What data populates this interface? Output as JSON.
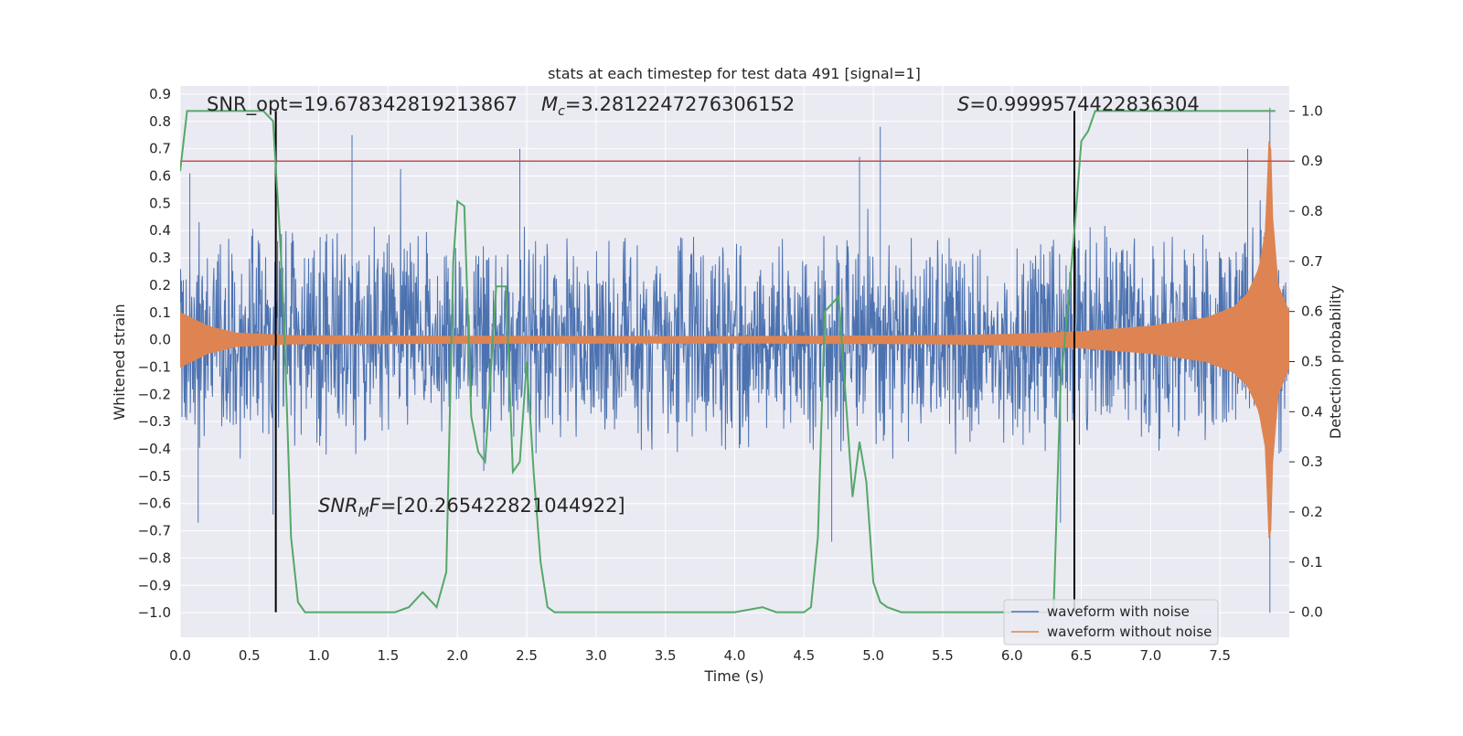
{
  "chart_data": {
    "type": "line",
    "title": "stats at each timestep for test data 491 [signal=1]",
    "xlabel": "Time (s)",
    "ylabel_left": "Whitened strain",
    "ylabel_right": "Detection probability",
    "xlim": [
      0.0,
      8.0
    ],
    "ylim_left": [
      -1.09,
      0.93
    ],
    "ylim_right": [
      -0.05,
      1.05
    ],
    "x_ticks": [
      "0.0",
      "0.5",
      "1.0",
      "1.5",
      "2.0",
      "2.5",
      "3.0",
      "3.5",
      "4.0",
      "4.5",
      "5.0",
      "5.5",
      "6.0",
      "6.5",
      "7.0",
      "7.5"
    ],
    "y_left_ticks": [
      "0.9",
      "0.8",
      "0.7",
      "0.6",
      "0.5",
      "0.4",
      "0.3",
      "0.2",
      "0.1",
      "0.0",
      "-0.1",
      "-0.2",
      "-0.3",
      "-0.4",
      "-0.5",
      "-0.6",
      "-0.7",
      "-0.8",
      "-0.9",
      "-1.0"
    ],
    "y_right_ticks": [
      "1.0",
      "0.9",
      "0.8",
      "0.7",
      "0.6",
      "0.5",
      "0.4",
      "0.3",
      "0.2",
      "0.1",
      "0.0"
    ],
    "grid": true,
    "legend_position": "lower-right",
    "colors": {
      "noisy": "#4c72b0",
      "clean": "#dd8452",
      "probability": "#55a868",
      "threshold": "#c44e52",
      "markers": "#000000",
      "plot_bg": "#eaeaf2",
      "grid": "#ffffff"
    },
    "series": [
      {
        "name": "waveform with noise",
        "axis": "left",
        "style": "dense noise",
        "typical_envelope": 0.3,
        "peaks": [
          [
            0.07,
            0.61
          ],
          [
            1.24,
            0.75
          ],
          [
            2.45,
            0.7
          ],
          [
            4.9,
            0.67
          ],
          [
            5.05,
            0.78
          ],
          [
            7.7,
            0.7
          ],
          [
            7.86,
            0.85
          ],
          [
            0.13,
            -0.67
          ],
          [
            0.67,
            -0.64
          ],
          [
            4.7,
            -0.74
          ],
          [
            6.35,
            -0.67
          ],
          [
            7.86,
            -1.0
          ]
        ]
      },
      {
        "name": "waveform without noise",
        "axis": "left",
        "style": "chirp envelope",
        "envelope": [
          [
            0.0,
            0.1
          ],
          [
            0.2,
            0.05
          ],
          [
            0.4,
            0.025
          ],
          [
            0.8,
            0.015
          ],
          [
            2.0,
            0.013
          ],
          [
            4.0,
            0.012
          ],
          [
            5.5,
            0.015
          ],
          [
            6.0,
            0.02
          ],
          [
            6.5,
            0.03
          ],
          [
            7.0,
            0.05
          ],
          [
            7.4,
            0.08
          ],
          [
            7.6,
            0.12
          ],
          [
            7.7,
            0.17
          ],
          [
            7.78,
            0.26
          ],
          [
            7.83,
            0.4
          ],
          [
            7.86,
            0.82
          ],
          [
            7.88,
            0.45
          ],
          [
            7.92,
            0.2
          ],
          [
            8.0,
            0.1
          ]
        ]
      },
      {
        "name": "",
        "axis": "right",
        "style": "line",
        "x": [
          0.0,
          0.05,
          0.1,
          0.3,
          0.5,
          0.6,
          0.67,
          0.72,
          0.75,
          0.8,
          0.85,
          0.9,
          1.0,
          1.2,
          1.4,
          1.55,
          1.65,
          1.75,
          1.85,
          1.92,
          1.97,
          2.0,
          2.05,
          2.1,
          2.15,
          2.2,
          2.28,
          2.35,
          2.4,
          2.45,
          2.5,
          2.55,
          2.6,
          2.65,
          2.7,
          2.8,
          3.0,
          3.5,
          4.0,
          4.2,
          4.3,
          4.4,
          4.5,
          4.55,
          4.6,
          4.65,
          4.75,
          4.85,
          4.9,
          4.95,
          5.0,
          5.05,
          5.1,
          5.2,
          5.3,
          5.6,
          6.0,
          6.2,
          6.3,
          6.35,
          6.4,
          6.45,
          6.5,
          6.55,
          6.6,
          6.7,
          7.0,
          7.5,
          7.9
        ],
        "y": [
          0.88,
          1.0,
          1.0,
          1.0,
          1.0,
          1.0,
          0.98,
          0.75,
          0.58,
          0.15,
          0.02,
          0.0,
          0.0,
          0.0,
          0.0,
          0.0,
          0.01,
          0.04,
          0.01,
          0.08,
          0.7,
          0.82,
          0.81,
          0.39,
          0.32,
          0.3,
          0.65,
          0.65,
          0.28,
          0.3,
          0.5,
          0.28,
          0.1,
          0.01,
          0.0,
          0.0,
          0.0,
          0.0,
          0.0,
          0.01,
          0.0,
          0.0,
          0.0,
          0.01,
          0.15,
          0.6,
          0.63,
          0.23,
          0.34,
          0.26,
          0.06,
          0.02,
          0.01,
          0.0,
          0.0,
          0.0,
          0.0,
          0.0,
          0.0,
          0.45,
          0.6,
          0.76,
          0.94,
          0.96,
          1.0,
          1.0,
          1.0,
          1.0,
          1.0
        ]
      }
    ],
    "threshold_line": {
      "axis": "right",
      "value": 0.9
    },
    "vertical_markers": [
      0.69,
      6.45
    ],
    "annotations": [
      {
        "id": "snr-opt",
        "text": "SNR_opt=19.678342819213867"
      },
      {
        "id": "mc",
        "base": "M",
        "sub": "c",
        "rest": "=3.2812247276306152"
      },
      {
        "id": "s",
        "base": "S",
        "rest": "=0.9999574422836304"
      },
      {
        "id": "snr-mf",
        "base": "SNR",
        "sub": "M",
        "mid": "F",
        "rest": "=[20.265422821044922]"
      }
    ]
  }
}
